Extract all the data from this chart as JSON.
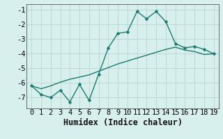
{
  "x": [
    0,
    1,
    2,
    3,
    4,
    5,
    6,
    7,
    8,
    9,
    10,
    11,
    12,
    13,
    14,
    15,
    16,
    17,
    18,
    19
  ],
  "line1_y": [
    -6.2,
    -6.8,
    -7.0,
    -6.5,
    -7.3,
    -6.1,
    -7.2,
    -5.4,
    -3.6,
    -2.6,
    -2.5,
    -1.1,
    -1.6,
    -1.1,
    -1.8,
    -3.3,
    -3.6,
    -3.5,
    -3.7,
    -4.0
  ],
  "line2_y": [
    -6.2,
    -6.4,
    -6.2,
    -5.95,
    -5.75,
    -5.6,
    -5.45,
    -5.2,
    -4.95,
    -4.7,
    -4.5,
    -4.3,
    -4.1,
    -3.9,
    -3.7,
    -3.55,
    -3.75,
    -3.85,
    -4.05,
    -4.0
  ],
  "line_color": "#1a7a6e",
  "background_color": "#d8f0ed",
  "grid_major_color": "#c0d8d5",
  "grid_minor_color": "#e8f8f5",
  "xlabel": "Humidex (Indice chaleur)",
  "ylim": [
    -7.75,
    -0.6
  ],
  "xlim": [
    -0.5,
    19.5
  ],
  "yticks": [
    -7,
    -6,
    -5,
    -4,
    -3,
    -2,
    -1
  ],
  "xticks": [
    0,
    1,
    2,
    3,
    4,
    5,
    6,
    7,
    8,
    9,
    10,
    11,
    12,
    13,
    14,
    15,
    16,
    17,
    18,
    19
  ],
  "marker_size": 2.5,
  "line_width": 1.0,
  "tick_fontsize": 7.5,
  "xlabel_fontsize": 8.5
}
